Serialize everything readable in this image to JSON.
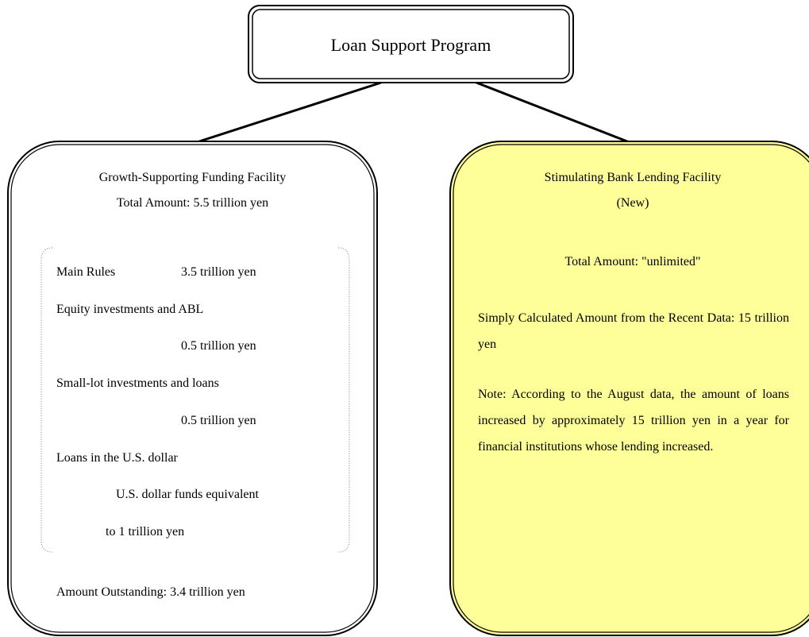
{
  "root": {
    "label": "Loan Support Program"
  },
  "left": {
    "title": "Growth-Supporting Funding Facility",
    "total": "Total Amount: 5.5 trillion yen",
    "items": [
      {
        "label": "Main Rules",
        "amount": "3.5 trillion yen"
      },
      {
        "label": "Equity investments and ABL",
        "amount": "0.5 trillion yen"
      },
      {
        "label": "Small-lot investments and loans",
        "amount": "0.5 trillion yen"
      },
      {
        "label": "Loans in the U.S. dollar",
        "amount": [
          "U.S. dollar funds equivalent",
          "to 1 trillion yen"
        ]
      }
    ],
    "outstanding": "Amount Outstanding: 3.4 trillion yen"
  },
  "right": {
    "title": [
      "Stimulating Bank Lending Facility",
      "(New)"
    ],
    "total": "Total Amount: \"unlimited\"",
    "calculated": "Simply Calculated Amount from the Recent Data: 15 trillion yen",
    "note": "Note: According to the August data, the amount of loans increased by approximately 15 trillion yen in a year for financial institutions whose lending increased."
  }
}
